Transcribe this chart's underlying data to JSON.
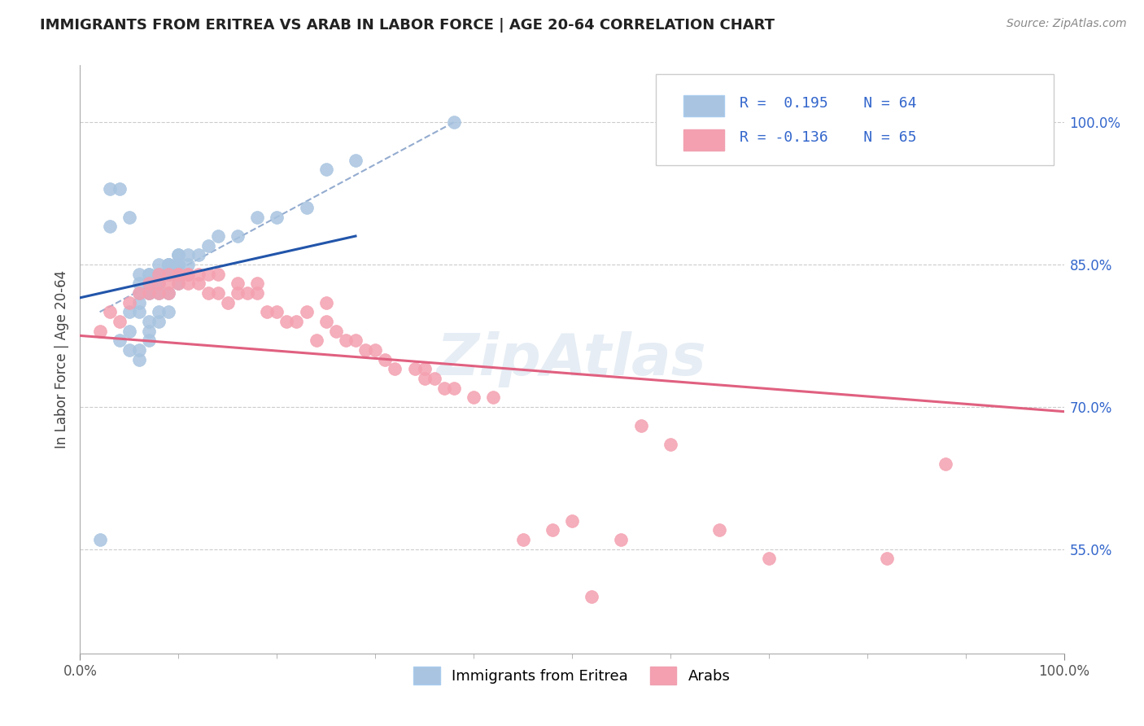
{
  "title": "IMMIGRANTS FROM ERITREA VS ARAB IN LABOR FORCE | AGE 20-64 CORRELATION CHART",
  "source": "Source: ZipAtlas.com",
  "ylabel": "In Labor Force | Age 20-64",
  "xticklabels": [
    "0.0%",
    "100.0%"
  ],
  "yticklabels_right": [
    "55.0%",
    "70.0%",
    "85.0%",
    "100.0%"
  ],
  "ytick_vals_right": [
    0.55,
    0.7,
    0.85,
    1.0
  ],
  "xlim": [
    0.0,
    1.0
  ],
  "ylim": [
    0.44,
    1.06
  ],
  "legend_blue_r": "R =  0.195",
  "legend_blue_n": "N = 64",
  "legend_pink_r": "R = -0.136",
  "legend_pink_n": "N = 65",
  "blue_color": "#a8c4e0",
  "pink_color": "#f4a0b0",
  "blue_line_color": "#2255aa",
  "pink_line_color": "#e06080",
  "dash_line_color": "#7090c0",
  "watermark": "ZipAtlas",
  "legend_label_blue": "Immigrants from Eritrea",
  "legend_label_pink": "Arabs",
  "blue_scatter_x": [
    0.02,
    0.03,
    0.03,
    0.04,
    0.04,
    0.05,
    0.05,
    0.05,
    0.05,
    0.06,
    0.06,
    0.06,
    0.06,
    0.06,
    0.06,
    0.06,
    0.07,
    0.07,
    0.07,
    0.07,
    0.07,
    0.07,
    0.07,
    0.07,
    0.07,
    0.07,
    0.08,
    0.08,
    0.08,
    0.08,
    0.08,
    0.08,
    0.08,
    0.08,
    0.08,
    0.09,
    0.09,
    0.09,
    0.09,
    0.09,
    0.09,
    0.09,
    0.09,
    0.09,
    0.09,
    0.1,
    0.1,
    0.1,
    0.1,
    0.1,
    0.1,
    0.1,
    0.11,
    0.11,
    0.12,
    0.13,
    0.14,
    0.16,
    0.18,
    0.2,
    0.23,
    0.25,
    0.28,
    0.38
  ],
  "blue_scatter_y": [
    0.56,
    0.89,
    0.93,
    0.77,
    0.93,
    0.76,
    0.78,
    0.8,
    0.9,
    0.75,
    0.76,
    0.8,
    0.81,
    0.82,
    0.83,
    0.84,
    0.77,
    0.78,
    0.79,
    0.82,
    0.82,
    0.83,
    0.83,
    0.83,
    0.84,
    0.84,
    0.79,
    0.8,
    0.82,
    0.83,
    0.83,
    0.84,
    0.84,
    0.84,
    0.85,
    0.8,
    0.82,
    0.84,
    0.84,
    0.84,
    0.84,
    0.85,
    0.85,
    0.85,
    0.85,
    0.83,
    0.84,
    0.85,
    0.85,
    0.85,
    0.86,
    0.86,
    0.85,
    0.86,
    0.86,
    0.87,
    0.88,
    0.88,
    0.9,
    0.9,
    0.91,
    0.95,
    0.96,
    1.0
  ],
  "pink_scatter_x": [
    0.02,
    0.03,
    0.04,
    0.05,
    0.06,
    0.07,
    0.07,
    0.08,
    0.08,
    0.08,
    0.09,
    0.09,
    0.09,
    0.1,
    0.1,
    0.1,
    0.11,
    0.11,
    0.11,
    0.12,
    0.12,
    0.13,
    0.13,
    0.14,
    0.14,
    0.15,
    0.16,
    0.16,
    0.17,
    0.18,
    0.18,
    0.19,
    0.2,
    0.21,
    0.22,
    0.23,
    0.24,
    0.25,
    0.25,
    0.26,
    0.27,
    0.28,
    0.29,
    0.3,
    0.31,
    0.32,
    0.34,
    0.35,
    0.35,
    0.36,
    0.37,
    0.38,
    0.4,
    0.42,
    0.45,
    0.48,
    0.5,
    0.52,
    0.55,
    0.57,
    0.6,
    0.65,
    0.7,
    0.82,
    0.88
  ],
  "pink_scatter_y": [
    0.78,
    0.8,
    0.79,
    0.81,
    0.82,
    0.82,
    0.83,
    0.82,
    0.83,
    0.84,
    0.82,
    0.83,
    0.84,
    0.83,
    0.84,
    0.84,
    0.83,
    0.84,
    0.84,
    0.83,
    0.84,
    0.82,
    0.84,
    0.82,
    0.84,
    0.81,
    0.83,
    0.82,
    0.82,
    0.82,
    0.83,
    0.8,
    0.8,
    0.79,
    0.79,
    0.8,
    0.77,
    0.79,
    0.81,
    0.78,
    0.77,
    0.77,
    0.76,
    0.76,
    0.75,
    0.74,
    0.74,
    0.73,
    0.74,
    0.73,
    0.72,
    0.72,
    0.71,
    0.71,
    0.56,
    0.57,
    0.58,
    0.5,
    0.56,
    0.68,
    0.66,
    0.57,
    0.54,
    0.54,
    0.64
  ],
  "blue_line_x": [
    0.0,
    0.28
  ],
  "blue_line_y_start": 0.815,
  "blue_line_y_end": 0.88,
  "pink_line_x": [
    0.0,
    1.0
  ],
  "pink_line_y_start": 0.775,
  "pink_line_y_end": 0.695,
  "dash_line_x": [
    0.02,
    0.38
  ],
  "dash_line_y_start": 0.8,
  "dash_line_y_end": 1.0
}
